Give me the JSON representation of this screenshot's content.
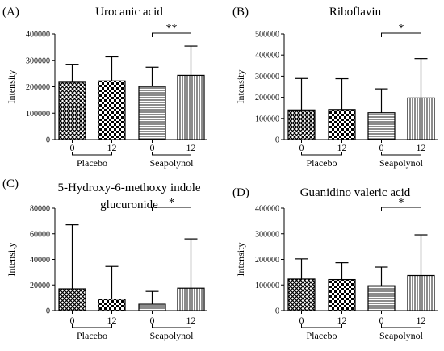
{
  "chart_data": [
    {
      "type": "bar",
      "panel_label": "(A)",
      "title": [
        "Urocanic acid"
      ],
      "ylabel": "Intensity",
      "ylim": [
        0,
        400000
      ],
      "yticks": [
        "0",
        "100000",
        "200000",
        "300000",
        "400000"
      ],
      "categories": [
        "0",
        "12",
        "0",
        "12"
      ],
      "groups": [
        "Placebo",
        "Seapolynol"
      ],
      "values": [
        217000,
        222000,
        201000,
        243000
      ],
      "errors": [
        285000,
        313000,
        274000,
        354000
      ],
      "patterns": [
        "crosshatch",
        "checker",
        "hlines",
        "vlines"
      ],
      "significance": "**"
    },
    {
      "type": "bar",
      "panel_label": "(B)",
      "title": [
        "Riboflavin"
      ],
      "ylabel": "Intensity",
      "ylim": [
        0,
        500000
      ],
      "yticks": [
        "0",
        "100000",
        "200000",
        "300000",
        "400000",
        "500000"
      ],
      "categories": [
        "0",
        "12",
        "0",
        "12"
      ],
      "groups": [
        "Placebo",
        "Seapolynol"
      ],
      "values": [
        140000,
        142000,
        127000,
        197000
      ],
      "errors": [
        289000,
        288000,
        240000,
        383000
      ],
      "patterns": [
        "crosshatch",
        "checker",
        "hlines",
        "vlines"
      ],
      "significance": "*"
    },
    {
      "type": "bar",
      "panel_label": "(C)",
      "title": [
        "5-Hydroxy-6-methoxy indole",
        "glucuronide"
      ],
      "ylabel": "Intensity",
      "ylim": [
        0,
        80000
      ],
      "yticks": [
        "0",
        "20000",
        "40000",
        "60000",
        "80000"
      ],
      "categories": [
        "0",
        "12",
        "0",
        "12"
      ],
      "groups": [
        "Placebo",
        "Seapolynol"
      ],
      "values": [
        17000,
        9000,
        5000,
        17500
      ],
      "errors": [
        67000,
        34500,
        15000,
        56000
      ],
      "patterns": [
        "crosshatch",
        "checker",
        "hlines",
        "vlines"
      ],
      "significance": "*"
    },
    {
      "type": "bar",
      "panel_label": "(D)",
      "title": [
        "Guanidino valeric acid"
      ],
      "ylabel": "Intensity",
      "ylim": [
        0,
        400000
      ],
      "yticks": [
        "0",
        "100000",
        "200000",
        "300000",
        "400000"
      ],
      "categories": [
        "0",
        "12",
        "0",
        "12"
      ],
      "groups": [
        "Placebo",
        "Seapolynol"
      ],
      "values": [
        123000,
        121000,
        97000,
        137000
      ],
      "errors": [
        202000,
        187000,
        170000,
        296000
      ],
      "patterns": [
        "crosshatch",
        "checker",
        "hlines",
        "vlines"
      ],
      "significance": "*"
    }
  ]
}
